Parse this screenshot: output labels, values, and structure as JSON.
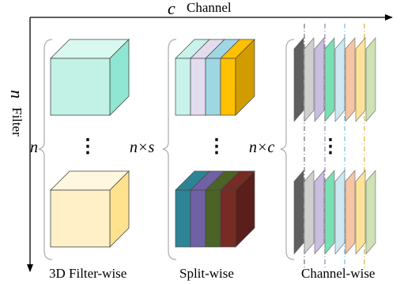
{
  "axes": {
    "x_symbol": "c",
    "x_label": "Channel",
    "y_symbol": "n",
    "y_label": "Filter"
  },
  "groups": [
    {
      "multiplier": "n",
      "caption": "3D Filter-wise"
    },
    {
      "multiplier": "n×s",
      "caption": "Split-wise"
    },
    {
      "multiplier": "n×c",
      "caption": "Channel-wise"
    }
  ],
  "ellipsis": "⋮",
  "colors": {
    "cube_top_front": "#c2f2e6",
    "cube_top_top": "#d9f8f0",
    "cube_top_side": "#8fe6d2",
    "cube_bottom_front": "#fff0c8",
    "cube_bottom_top": "#fff7df",
    "cube_bottom_side": "#ffe28e",
    "split_top": [
      "#c9f3ea",
      "#e3dcef",
      "#9fd6e3",
      "#ffc000",
      "#d19c00"
    ],
    "split_bottom": [
      "#2e8494",
      "#7060a4",
      "#4b6327",
      "#762b25",
      "#5a1f1a"
    ],
    "channel": [
      "#5f5f5f",
      "#cfcfcf",
      "#c9bde0",
      "#79e0b4",
      "#cde8f0",
      "#f6c6a4",
      "#fde39a",
      "#cfe2b6"
    ],
    "dash_lines": [
      "#555555",
      "#7a6aa8",
      "#4fb5d8",
      "#d8a000"
    ]
  }
}
